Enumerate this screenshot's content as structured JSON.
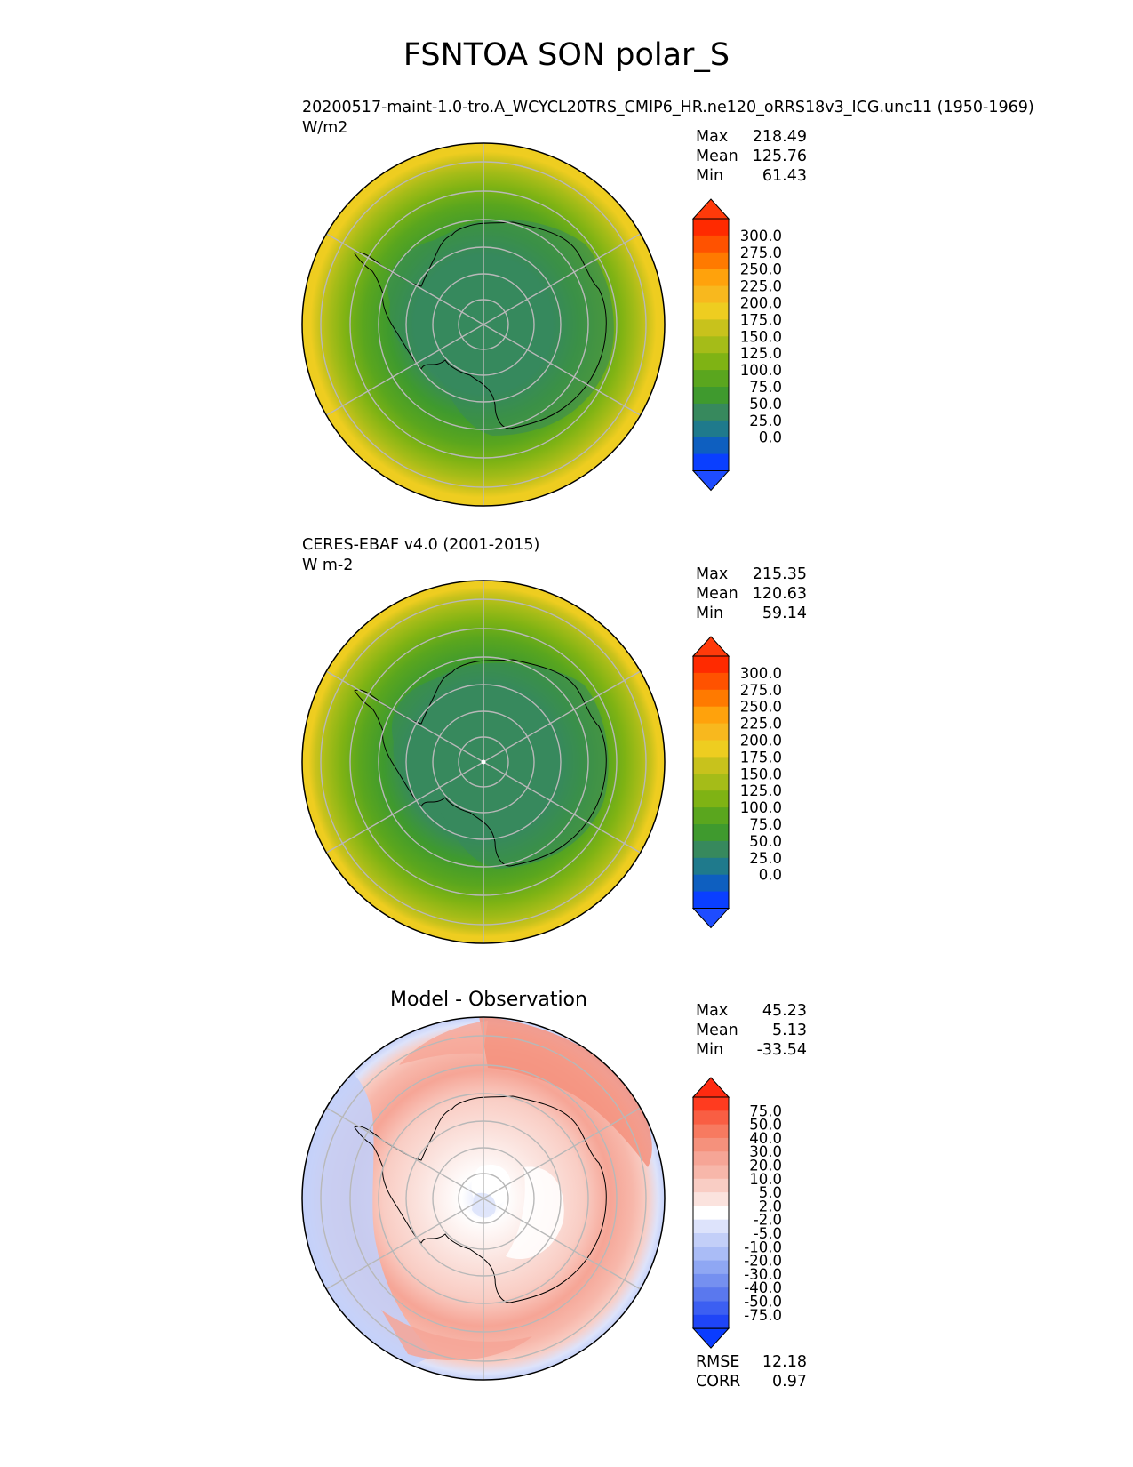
{
  "figure": {
    "title": "FSNTOA SON polar_S"
  },
  "panels": [
    {
      "id": "test",
      "subtitle": "20200517-maint-1.0-tro.A_WCYCL20TRS_CMIP6_HR.ne120_oRRS18v3_ICG.unc11 (1950-1969)",
      "units": "W/m2",
      "stats": [
        {
          "label": "Max",
          "value": "218.49"
        },
        {
          "label": "Mean",
          "value": "125.76"
        },
        {
          "label": "Min",
          "value": "61.43"
        }
      ],
      "colorbar": {
        "ticks": [
          "300.0",
          "275.0",
          "250.0",
          "225.0",
          "200.0",
          "175.0",
          "150.0",
          "125.0",
          "100.0",
          "75.0",
          "50.0",
          "25.0",
          "0.0"
        ],
        "colors": [
          "#ff2a00",
          "#ff5200",
          "#ff7a00",
          "#ffa20c",
          "#f8b81e",
          "#eecd20",
          "#c8c21c",
          "#a5bc18",
          "#7fb314",
          "#5aa61e",
          "#3f9a2e",
          "#37895d",
          "#1f7a8c",
          "#0e5fc0",
          "#0a3fff"
        ],
        "over_color": "#ff3a0a",
        "under_color": "#1e4cff"
      }
    },
    {
      "id": "reference",
      "subtitle": "CERES-EBAF v4.0 (2001-2015)",
      "units": "W m-2",
      "stats": [
        {
          "label": "Max",
          "value": "215.35"
        },
        {
          "label": "Mean",
          "value": "120.63"
        },
        {
          "label": "Min",
          "value": "59.14"
        }
      ],
      "colorbar": {
        "ticks": [
          "300.0",
          "275.0",
          "250.0",
          "225.0",
          "200.0",
          "175.0",
          "150.0",
          "125.0",
          "100.0",
          "75.0",
          "50.0",
          "25.0",
          "0.0"
        ],
        "colors": [
          "#ff2a00",
          "#ff5200",
          "#ff7a00",
          "#ffa20c",
          "#f8b81e",
          "#eecd20",
          "#c8c21c",
          "#a5bc18",
          "#7fb314",
          "#5aa61e",
          "#3f9a2e",
          "#37895d",
          "#1f7a8c",
          "#0e5fc0",
          "#0a3fff"
        ],
        "over_color": "#ff3a0a",
        "under_color": "#1e4cff"
      }
    },
    {
      "id": "difference",
      "title": "Model - Observation",
      "stats": [
        {
          "label": "Max",
          "value": "45.23"
        },
        {
          "label": "Mean",
          "value": "5.13"
        },
        {
          "label": "Min",
          "value": "-33.54"
        }
      ],
      "colorbar": {
        "ticks": [
          "75.0",
          "50.0",
          "40.0",
          "30.0",
          "20.0",
          "10.0",
          "5.0",
          "2.0",
          "-2.0",
          "-5.0",
          "-10.0",
          "-20.0",
          "-30.0",
          "-40.0",
          "-50.0",
          "-75.0"
        ],
        "colors": [
          "#ff3b1f",
          "#f95e43",
          "#f77a60",
          "#f5917c",
          "#f6a596",
          "#f7b7aa",
          "#f9cdc4",
          "#fbe3de",
          "#ffffff",
          "#dde3fb",
          "#c3cff8",
          "#aabcf6",
          "#8fa7f3",
          "#7590f0",
          "#5a78ee",
          "#3c5ff2",
          "#1f45f7"
        ],
        "over_color": "#ff2a10",
        "under_color": "#0a3cff"
      },
      "metrics": [
        {
          "label": "RMSE",
          "value": "12.18"
        },
        {
          "label": "CORR",
          "value": "0.97"
        }
      ]
    }
  ],
  "chart_data": [
    {
      "type": "heatmap",
      "projection": "south-polar-stereographic",
      "title": "20200517-maint-1.0-tro.A_WCYCL20TRS_CMIP6_HR.ne120_oRRS18v3_ICG.unc11 (1950-1969)",
      "units": "W/m2",
      "levels": [
        0,
        25,
        50,
        75,
        100,
        125,
        150,
        175,
        200,
        225,
        250,
        275,
        300
      ],
      "extend": "both",
      "stats": {
        "max": 218.49,
        "mean": 125.76,
        "min": 61.43
      },
      "regions": [
        {
          "region": "east-antarctic-plateau",
          "approx_value": 70
        },
        {
          "region": "antarctic-coast",
          "approx_value": 90
        },
        {
          "region": "southern-ocean-sea-ice",
          "approx_value": 110
        },
        {
          "region": "southern-ocean-mid",
          "approx_value": 145
        },
        {
          "region": "outer-ring",
          "approx_value": 190
        }
      ]
    },
    {
      "type": "heatmap",
      "projection": "south-polar-stereographic",
      "title": "CERES-EBAF v4.0 (2001-2015)",
      "units": "W m-2",
      "levels": [
        0,
        25,
        50,
        75,
        100,
        125,
        150,
        175,
        200,
        225,
        250,
        275,
        300
      ],
      "extend": "both",
      "stats": {
        "max": 215.35,
        "mean": 120.63,
        "min": 59.14
      },
      "regions": [
        {
          "region": "east-antarctic-plateau",
          "approx_value": 68
        },
        {
          "region": "antarctic-coast",
          "approx_value": 80
        },
        {
          "region": "southern-ocean-sea-ice",
          "approx_value": 105
        },
        {
          "region": "southern-ocean-mid",
          "approx_value": 140
        },
        {
          "region": "outer-ring",
          "approx_value": 190
        }
      ]
    },
    {
      "type": "heatmap",
      "projection": "south-polar-stereographic",
      "title": "Model - Observation",
      "levels": [
        -75,
        -50,
        -40,
        -30,
        -20,
        -10,
        -5,
        -2,
        2,
        5,
        10,
        20,
        30,
        40,
        50,
        75
      ],
      "extend": "both",
      "stats": {
        "max": 45.23,
        "mean": 5.13,
        "min": -33.54,
        "rmse": 12.18,
        "corr": 0.97
      },
      "regions": [
        {
          "region": "pole",
          "approx_value": -3
        },
        {
          "region": "east-antarctic-plateau",
          "approx_value": 4
        },
        {
          "region": "antarctic-coast",
          "approx_value": 12
        },
        {
          "region": "southern-ocean-mid",
          "approx_value": 25
        },
        {
          "region": "outer-ring",
          "approx_value": -12
        }
      ]
    }
  ]
}
